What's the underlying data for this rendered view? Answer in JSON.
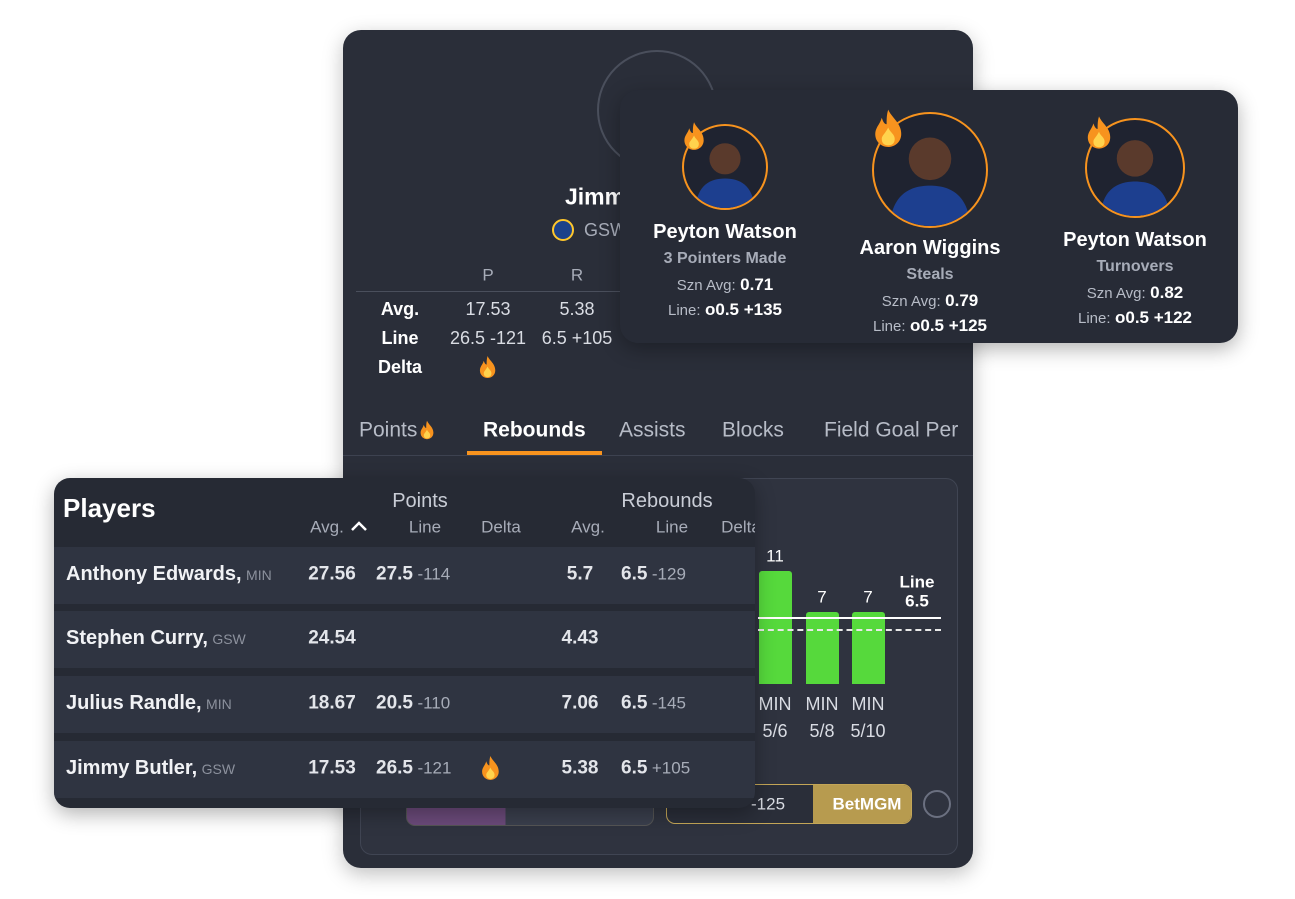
{
  "main_card": {
    "player_name": "Jimmy Butler",
    "team": "GSW",
    "stats": {
      "columns": [
        "P",
        "R"
      ],
      "rows": [
        {
          "label": "Avg.",
          "cells": [
            "17.53",
            "5.38"
          ]
        },
        {
          "label": "Line",
          "cells": [
            "26.5 -121",
            "6.5 +105"
          ]
        },
        {
          "label": "Delta",
          "hot": [
            true,
            false
          ]
        }
      ]
    },
    "tabs": [
      {
        "label": "Points",
        "hot": true
      },
      {
        "label": "Rebounds",
        "selected": true
      },
      {
        "label": "Assists"
      },
      {
        "label": "Blocks"
      },
      {
        "label": "Field Goal Per"
      }
    ],
    "game_chart": {
      "values": [
        11,
        7,
        7
      ],
      "categories": [
        [
          "MIN",
          "5/6"
        ],
        [
          "MIN",
          "5/8"
        ],
        [
          "MIN",
          "5/10"
        ]
      ],
      "color": "#56d93c",
      "line_label": "Line",
      "line_value": 6.5,
      "average_value": 5.38
    },
    "bet": {
      "odds": "-125",
      "book": "BetMGM"
    }
  },
  "prop_cards": [
    {
      "name": "Peyton Watson",
      "stat": "3 Pointers Made",
      "avg_label": "Szn Avg:",
      "avg": "0.71",
      "line_label": "Line:",
      "line": "o0.5 +135"
    },
    {
      "name": "Aaron Wiggins",
      "stat": "Steals",
      "avg_label": "Szn Avg:",
      "avg": "0.79",
      "line_label": "Line:",
      "line": "o0.5 +125"
    },
    {
      "name": "Peyton Watson",
      "stat": "Turnovers",
      "avg_label": "Szn Avg:",
      "avg": "0.82",
      "line_label": "Line:",
      "line": "o0.5 +122"
    }
  ],
  "players_table": {
    "title": "Players",
    "groups": [
      {
        "title": "Points",
        "columns": [
          "Avg.",
          "Line",
          "Delta"
        ]
      },
      {
        "title": "Rebounds",
        "columns": [
          "Avg.",
          "Line",
          "Delta"
        ]
      }
    ],
    "rows": [
      {
        "name": "Anthony Edwards,",
        "team": "MIN",
        "points": {
          "avg": "27.56",
          "line": "27.5",
          "odds": "-114"
        },
        "rebounds": {
          "avg": "5.7",
          "line": "6.5",
          "odds": "-129"
        }
      },
      {
        "name": "Stephen Curry,",
        "team": "GSW",
        "points": {
          "avg": "24.54"
        },
        "rebounds": {
          "avg": "4.43"
        }
      },
      {
        "name": "Julius Randle,",
        "team": "MIN",
        "points": {
          "avg": "18.67",
          "line": "20.5",
          "odds": "-110"
        },
        "rebounds": {
          "avg": "7.06",
          "line": "6.5",
          "odds": "-145"
        }
      },
      {
        "name": "Jimmy Butler,",
        "team": "GSW",
        "points": {
          "avg": "17.53",
          "line": "26.5",
          "odds": "-121",
          "hot": true
        },
        "rebounds": {
          "avg": "5.38",
          "line": "6.5",
          "odds": "+105"
        }
      }
    ]
  }
}
